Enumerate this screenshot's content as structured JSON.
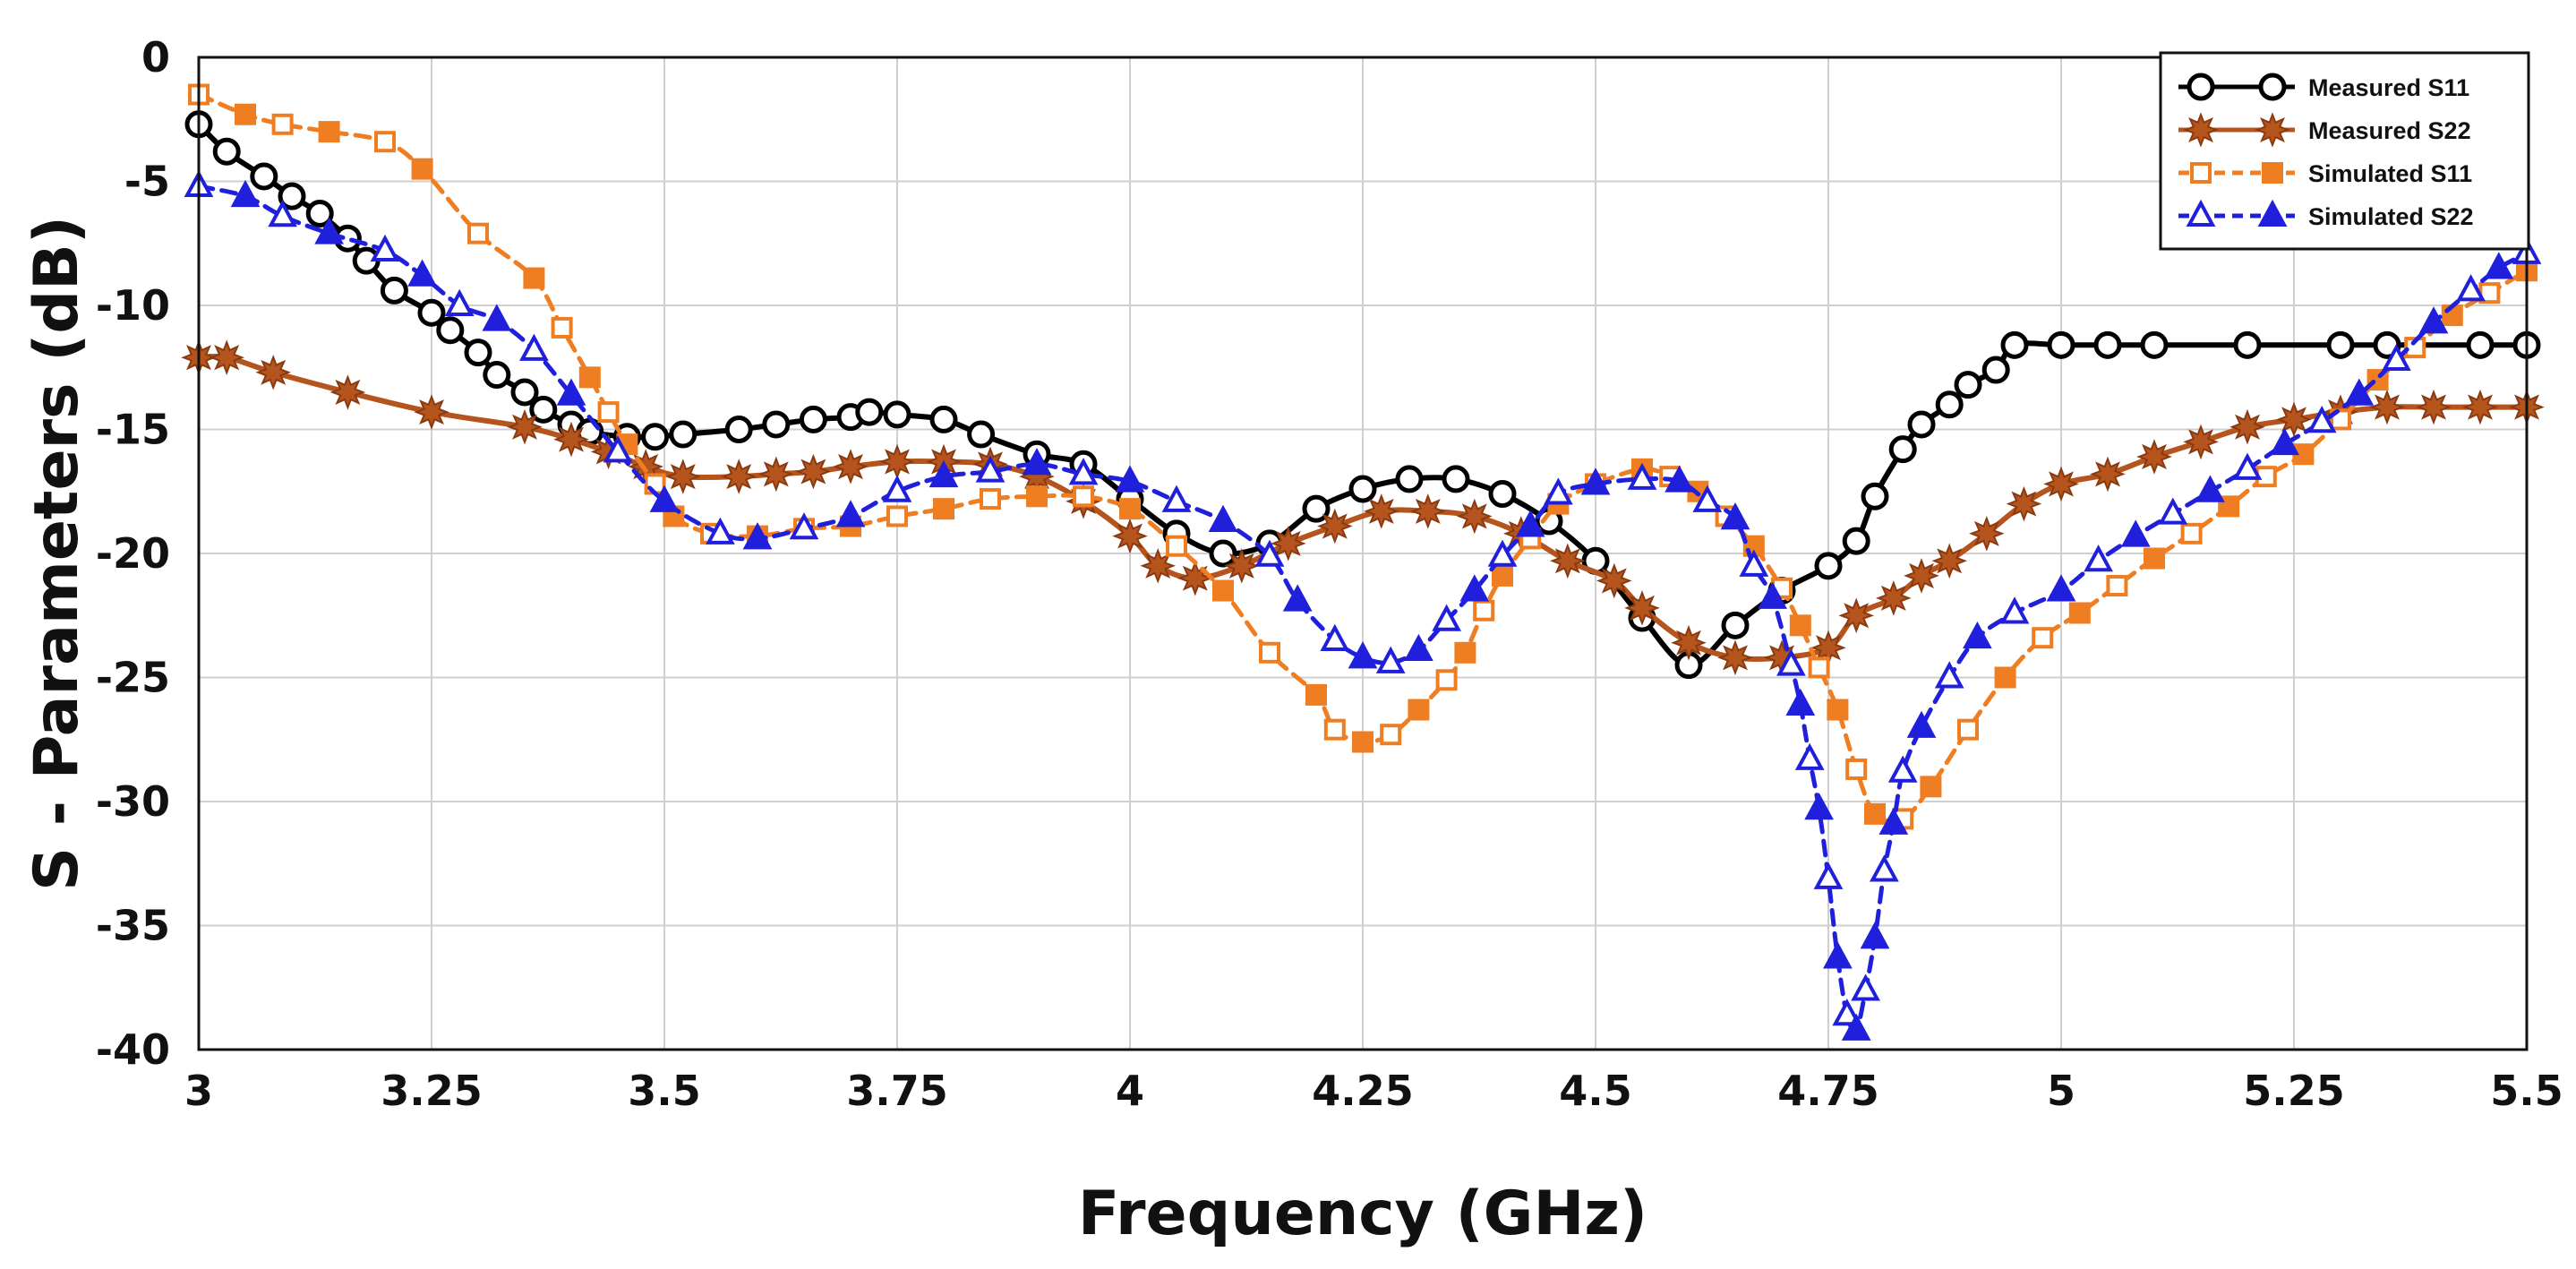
{
  "chart_data": {
    "type": "line",
    "title": "",
    "xlabel": "Frequency (GHz)",
    "ylabel": "S - Parameters (dB)",
    "xlim": [
      3,
      5.5
    ],
    "ylim": [
      -40,
      0
    ],
    "grid": true,
    "legend_position": "top-right",
    "xticks": [
      3,
      3.25,
      3.5,
      3.75,
      4,
      4.25,
      4.5,
      4.75,
      5,
      5.25,
      5.5
    ],
    "xtick_labels": [
      "3",
      "3.25",
      "3.5",
      "3.75",
      "4",
      "4.25",
      "4.5",
      "4.75",
      "5",
      "5.25",
      "5.5"
    ],
    "yticks": [
      0,
      -5,
      -10,
      -15,
      -20,
      -25,
      -30,
      -35,
      -40
    ],
    "ytick_labels": [
      "0",
      "-5",
      "-10",
      "-15",
      "-20",
      "-25",
      "-30",
      "-35",
      "-40"
    ],
    "series": [
      {
        "name": "Measured S11",
        "color": "#000000",
        "marker": "circle-open",
        "dashed": false,
        "x": [
          3.0,
          3.03,
          3.07,
          3.1,
          3.13,
          3.16,
          3.18,
          3.21,
          3.25,
          3.27,
          3.3,
          3.32,
          3.35,
          3.37,
          3.4,
          3.42,
          3.46,
          3.49,
          3.52,
          3.58,
          3.62,
          3.66,
          3.7,
          3.72,
          3.75,
          3.8,
          3.84,
          3.9,
          3.95,
          4.0,
          4.05,
          4.1,
          4.15,
          4.2,
          4.25,
          4.3,
          4.35,
          4.4,
          4.45,
          4.5,
          4.55,
          4.6,
          4.65,
          4.7,
          4.75,
          4.78,
          4.8,
          4.83,
          4.85,
          4.88,
          4.9,
          4.93,
          4.95,
          5.0,
          5.05,
          5.1,
          5.2,
          5.3,
          5.35,
          5.45,
          5.5
        ],
        "values": [
          -2.7,
          -3.8,
          -4.8,
          -5.6,
          -6.3,
          -7.3,
          -8.2,
          -9.4,
          -10.3,
          -11.0,
          -11.9,
          -12.8,
          -13.5,
          -14.2,
          -14.8,
          -15.1,
          -15.3,
          -15.3,
          -15.2,
          -15.0,
          -14.8,
          -14.6,
          -14.5,
          -14.3,
          -14.4,
          -14.6,
          -15.2,
          -16.0,
          -16.4,
          -17.8,
          -19.2,
          -20.0,
          -19.6,
          -18.2,
          -17.4,
          -17.0,
          -17.0,
          -17.6,
          -18.7,
          -20.3,
          -22.6,
          -24.5,
          -22.9,
          -21.5,
          -20.5,
          -19.5,
          -17.7,
          -15.8,
          -14.8,
          -14.0,
          -13.2,
          -12.6,
          -11.6,
          -11.6,
          -11.6,
          -11.6,
          -11.6,
          -11.6,
          -11.6,
          -11.6,
          -11.6
        ]
      },
      {
        "name": "Measured S22",
        "color": "#b5541c",
        "marker": "star",
        "dashed": false,
        "x": [
          3.0,
          3.03,
          3.08,
          3.16,
          3.25,
          3.35,
          3.4,
          3.44,
          3.48,
          3.52,
          3.58,
          3.62,
          3.66,
          3.7,
          3.75,
          3.8,
          3.85,
          3.9,
          3.95,
          4.0,
          4.03,
          4.07,
          4.12,
          4.17,
          4.22,
          4.27,
          4.32,
          4.37,
          4.42,
          4.47,
          4.52,
          4.55,
          4.6,
          4.65,
          4.7,
          4.75,
          4.78,
          4.82,
          4.85,
          4.88,
          4.92,
          4.96,
          5.0,
          5.05,
          5.1,
          5.15,
          5.2,
          5.25,
          5.3,
          5.35,
          5.4,
          5.45,
          5.5
        ],
        "values": [
          -12.1,
          -12.1,
          -12.7,
          -13.5,
          -14.3,
          -14.9,
          -15.4,
          -15.9,
          -16.5,
          -16.9,
          -16.9,
          -16.8,
          -16.7,
          -16.5,
          -16.3,
          -16.3,
          -16.4,
          -16.9,
          -17.9,
          -19.3,
          -20.5,
          -21.0,
          -20.5,
          -19.6,
          -18.9,
          -18.3,
          -18.3,
          -18.5,
          -19.2,
          -20.3,
          -21.1,
          -22.2,
          -23.6,
          -24.2,
          -24.2,
          -23.8,
          -22.5,
          -21.8,
          -20.9,
          -20.3,
          -19.2,
          -18.0,
          -17.2,
          -16.8,
          -16.1,
          -15.5,
          -14.9,
          -14.6,
          -14.3,
          -14.1,
          -14.1,
          -14.1,
          -14.1
        ]
      },
      {
        "name": "Simulated S11",
        "color": "#ef7d22",
        "marker": "square-alternating",
        "dashed": true,
        "x": [
          3.0,
          3.05,
          3.09,
          3.14,
          3.2,
          3.24,
          3.3,
          3.36,
          3.39,
          3.42,
          3.44,
          3.46,
          3.49,
          3.51,
          3.55,
          3.6,
          3.65,
          3.7,
          3.75,
          3.8,
          3.85,
          3.9,
          3.95,
          4.0,
          4.05,
          4.1,
          4.15,
          4.2,
          4.22,
          4.25,
          4.28,
          4.31,
          4.34,
          4.36,
          4.38,
          4.4,
          4.43,
          4.46,
          4.5,
          4.55,
          4.58,
          4.61,
          4.64,
          4.67,
          4.7,
          4.72,
          4.74,
          4.76,
          4.78,
          4.8,
          4.83,
          4.86,
          4.9,
          4.94,
          4.98,
          5.02,
          5.06,
          5.1,
          5.14,
          5.18,
          5.22,
          5.26,
          5.3,
          5.34,
          5.38,
          5.42,
          5.46,
          5.5
        ],
        "values": [
          -1.5,
          -2.3,
          -2.7,
          -3.0,
          -3.4,
          -4.5,
          -7.1,
          -8.9,
          -10.9,
          -12.9,
          -14.3,
          -15.6,
          -17.2,
          -18.5,
          -19.2,
          -19.3,
          -19.0,
          -18.9,
          -18.5,
          -18.2,
          -17.8,
          -17.7,
          -17.7,
          -18.2,
          -19.7,
          -21.5,
          -24.0,
          -25.7,
          -27.1,
          -27.6,
          -27.3,
          -26.3,
          -25.1,
          -24.0,
          -22.3,
          -20.9,
          -19.4,
          -18.0,
          -17.2,
          -16.6,
          -16.9,
          -17.5,
          -18.5,
          -19.7,
          -21.4,
          -22.9,
          -24.6,
          -26.3,
          -28.7,
          -30.5,
          -30.7,
          -29.4,
          -27.1,
          -25.0,
          -23.4,
          -22.4,
          -21.3,
          -20.2,
          -19.2,
          -18.1,
          -16.9,
          -16.0,
          -14.6,
          -13.0,
          -11.7,
          -10.4,
          -9.5,
          -8.6
        ]
      },
      {
        "name": "Simulated S22",
        "color": "#1f1fdc",
        "marker": "triangle-alternating",
        "dashed": true,
        "x": [
          3.0,
          3.05,
          3.09,
          3.14,
          3.2,
          3.24,
          3.28,
          3.32,
          3.36,
          3.4,
          3.45,
          3.5,
          3.56,
          3.6,
          3.65,
          3.7,
          3.75,
          3.8,
          3.85,
          3.9,
          3.95,
          4.0,
          4.05,
          4.1,
          4.15,
          4.18,
          4.22,
          4.25,
          4.28,
          4.31,
          4.34,
          4.37,
          4.4,
          4.43,
          4.46,
          4.5,
          4.55,
          4.59,
          4.62,
          4.65,
          4.67,
          4.69,
          4.71,
          4.72,
          4.73,
          4.74,
          4.75,
          4.76,
          4.77,
          4.78,
          4.79,
          4.8,
          4.81,
          4.82,
          4.83,
          4.85,
          4.88,
          4.91,
          4.95,
          5.0,
          5.04,
          5.08,
          5.12,
          5.16,
          5.2,
          5.24,
          5.28,
          5.32,
          5.36,
          5.4,
          5.44,
          5.47,
          5.5
        ],
        "values": [
          -5.2,
          -5.6,
          -6.4,
          -7.1,
          -7.8,
          -8.8,
          -10.0,
          -10.6,
          -11.8,
          -13.6,
          -15.9,
          -17.9,
          -19.2,
          -19.4,
          -19.0,
          -18.5,
          -17.5,
          -16.9,
          -16.7,
          -16.4,
          -16.8,
          -17.1,
          -17.9,
          -18.7,
          -20.1,
          -21.9,
          -23.5,
          -24.2,
          -24.4,
          -23.9,
          -22.7,
          -21.5,
          -20.1,
          -18.9,
          -17.6,
          -17.2,
          -17.0,
          -17.1,
          -17.9,
          -18.6,
          -20.5,
          -21.8,
          -24.5,
          -26.1,
          -28.3,
          -30.3,
          -33.1,
          -36.3,
          -38.6,
          -39.2,
          -37.6,
          -35.5,
          -32.8,
          -30.9,
          -28.8,
          -27.0,
          -25.0,
          -23.4,
          -22.4,
          -21.5,
          -20.3,
          -19.3,
          -18.4,
          -17.5,
          -16.6,
          -15.6,
          -14.7,
          -13.6,
          -12.2,
          -10.7,
          -9.4,
          -8.5,
          -7.9
        ]
      }
    ]
  }
}
